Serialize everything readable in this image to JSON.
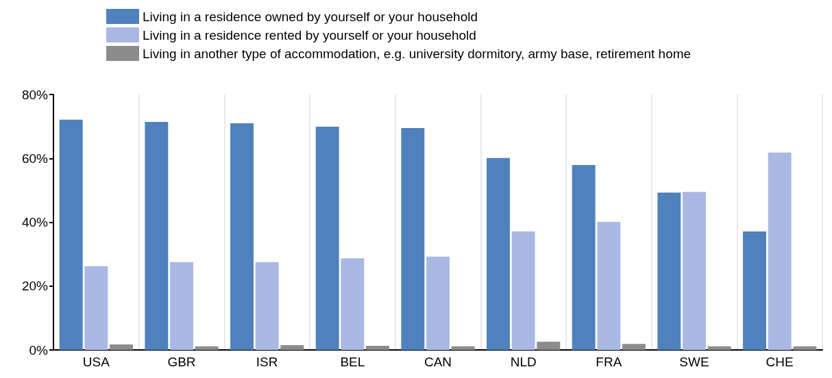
{
  "chart_data": {
    "type": "bar",
    "categories": [
      "USA",
      "GBR",
      "ISR",
      "BEL",
      "CAN",
      "NLD",
      "FRA",
      "SWE",
      "CHE"
    ],
    "series": [
      {
        "name": "Living in a residence owned by yourself or your household",
        "color": "#4f81bd",
        "values": [
          72.1,
          71.4,
          71.0,
          69.9,
          69.5,
          60.1,
          57.9,
          49.3,
          37.1
        ]
      },
      {
        "name": "Living in a residence rented by yourself or your household",
        "color": "#a9b9e3",
        "values": [
          26.2,
          27.5,
          27.5,
          28.7,
          29.2,
          37.1,
          40.1,
          49.5,
          61.8
        ]
      },
      {
        "name": "Living in another type of accommodation, e.g. university dormitory, army base, retirement home",
        "color": "#8c8c8c",
        "values": [
          1.7,
          1.1,
          1.5,
          1.3,
          1.1,
          2.6,
          1.9,
          1.1,
          1.1
        ]
      }
    ],
    "ylim": [
      0,
      80
    ],
    "yticks": [
      {
        "value": 0,
        "label": "0%"
      },
      {
        "value": 20,
        "label": "20%"
      },
      {
        "value": 40,
        "label": "40%"
      },
      {
        "value": 60,
        "label": "60%"
      },
      {
        "value": 80,
        "label": "80%"
      }
    ],
    "grid": "x",
    "legend": "top"
  }
}
